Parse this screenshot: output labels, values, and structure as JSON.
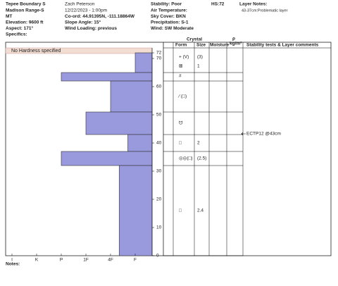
{
  "header": {
    "col1": [
      "Tepee Boundary S",
      "Madison Range-S",
      "MT",
      "Elevation: 9600 ft",
      "Aspect: 171°",
      "Specifics:"
    ],
    "col2": [
      "Zach Peterson",
      "12/22/2023 - 1:00pm",
      "Co-ord: 44.91395N, -111.18864W",
      "Slope Angle: 15°",
      "Wind Loading: previous"
    ],
    "col3": [
      "Stability: Poor",
      "Air Temperature:",
      "Sky Cover: BKN",
      "Precipitation: S-1",
      "Wind:  SW Moderate"
    ],
    "hs": "HS:72",
    "layer_notes_title": "Layer Notes:",
    "layer_notes": "43-37cm:Problematic layer"
  },
  "table_headers": {
    "crystal": "Crystal",
    "form": "Form",
    "size": "Size",
    "moisture": "Moisture",
    "rho": "ρ",
    "rho_unit": "kg/m³",
    "stability": "Stability tests & Layer comments"
  },
  "chart_data": {
    "type": "bar",
    "no_hardness": "No Hardness specified",
    "color": "#9999dd",
    "layers": [
      {
        "top": 72,
        "bottom": 65,
        "hardness": 1
      },
      {
        "top": 65,
        "bottom": 62,
        "hardness": 4
      },
      {
        "top": 62,
        "bottom": 51,
        "hardness": 2
      },
      {
        "top": 51,
        "bottom": 43,
        "hardness": 3
      },
      {
        "top": 43,
        "bottom": 37,
        "hardness": 1.3
      },
      {
        "top": 37,
        "bottom": 32,
        "hardness": 4
      },
      {
        "top": 32,
        "bottom": 0,
        "hardness": 1.65
      }
    ],
    "ylim": [
      0,
      72
    ],
    "yticks": [
      0,
      10,
      20,
      30,
      40,
      50,
      60,
      70,
      72
    ],
    "xlim": [
      0,
      6.3
    ],
    "xticks": [
      {
        "value": 6,
        "label": "I"
      },
      {
        "value": 5,
        "label": "K"
      },
      {
        "value": 4,
        "label": "P"
      },
      {
        "value": 3,
        "label": "1F"
      },
      {
        "value": 2,
        "label": "4F"
      },
      {
        "value": 1,
        "label": "F"
      }
    ]
  },
  "crystals": [
    {
      "form": "+ (V)",
      "size": "(3)"
    },
    {
      "form": "⊠",
      "size": "1"
    },
    {
      "form": "#",
      "size": ""
    },
    {
      "form": "⁄ (□)",
      "size": ""
    },
    {
      "form": "ᗢ",
      "size": ""
    },
    {
      "form": "□",
      "size": "2"
    },
    {
      "form": "◎◎(□)",
      "size": "(2.5)"
    },
    {
      "form": "□",
      "size": "2.4"
    }
  ],
  "stability": "ECTP12 @43cm",
  "notes": "Notes:"
}
